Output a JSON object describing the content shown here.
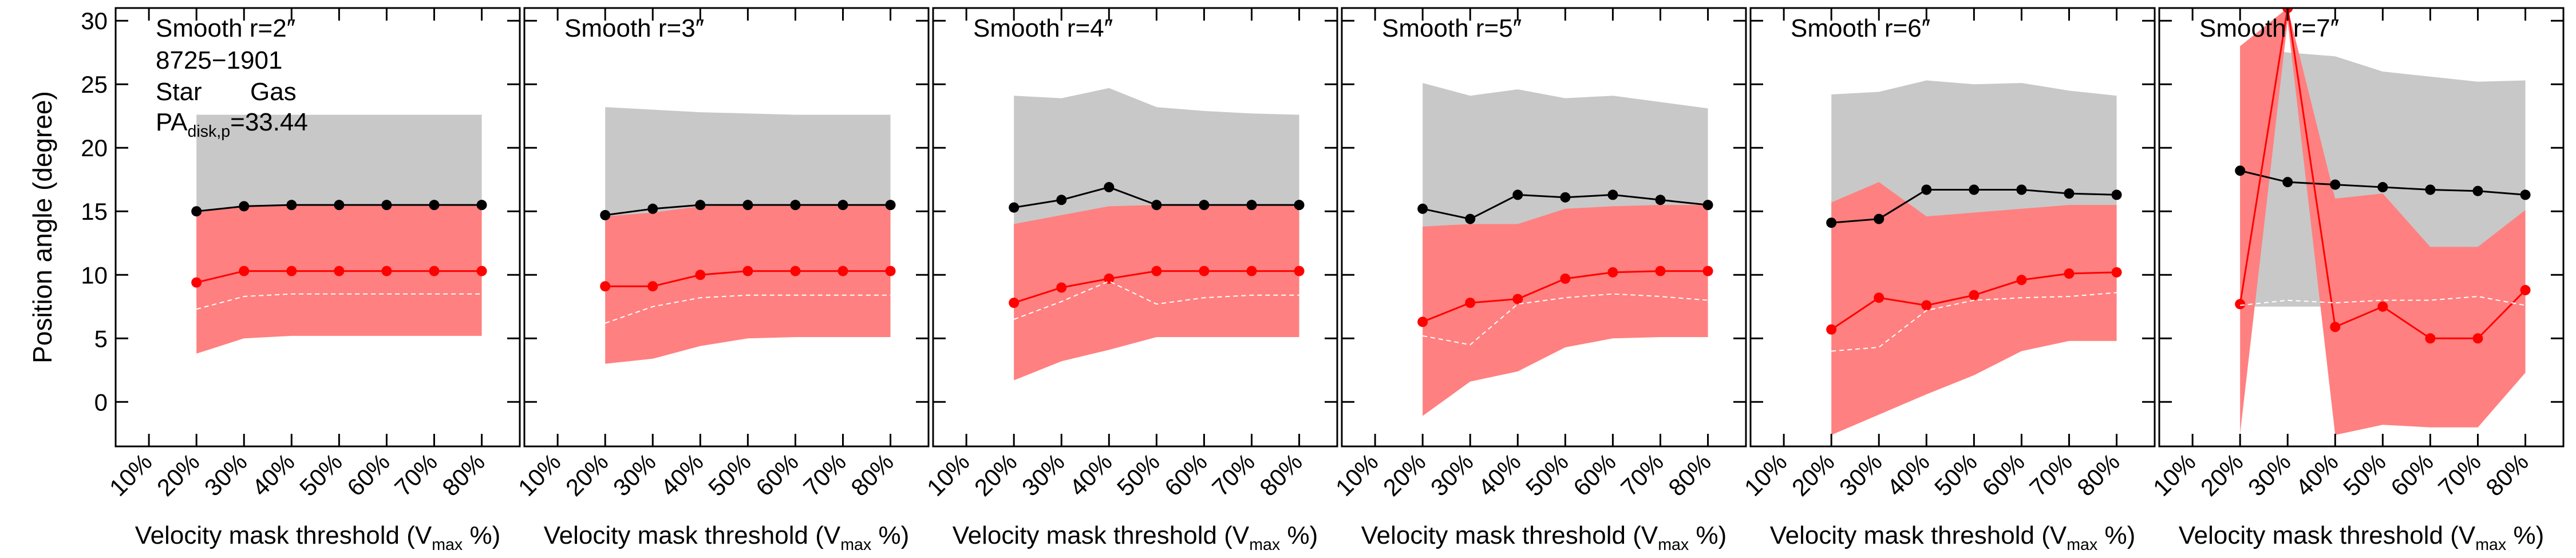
{
  "chart_data": [
    {
      "type": "line",
      "title": "Smooth r=2″",
      "annotations": [
        "8725−1901"
      ],
      "pa_label": {
        "text": "PA",
        "sub": "disk,p",
        "tail": "=33.44"
      },
      "ylabel": "Position angle (degree)",
      "xlabel": {
        "text": "Velocity mask threshold (V",
        "sub": "max",
        "tail": " %)"
      },
      "x": [
        20,
        30,
        40,
        50,
        60,
        70,
        80
      ],
      "xlim": [
        3,
        88
      ],
      "xticks": [
        {
          "value": 10,
          "label": "10%"
        },
        {
          "value": 20,
          "label": "20%"
        },
        {
          "value": 30,
          "label": "30%"
        },
        {
          "value": 40,
          "label": "40%"
        },
        {
          "value": 50,
          "label": "50%"
        },
        {
          "value": 60,
          "label": "60%"
        },
        {
          "value": 70,
          "label": "70%"
        },
        {
          "value": 80,
          "label": "80%"
        }
      ],
      "ylim": [
        -3.5,
        31
      ],
      "yticks": [
        0,
        5,
        10,
        15,
        20,
        25,
        30
      ],
      "series": [
        {
          "name": "Star",
          "color": "#000000",
          "band_color": "#c8c8c8",
          "values": [
            15.0,
            15.4,
            15.5,
            15.5,
            15.5,
            15.5,
            15.5
          ],
          "lower": [
            8,
            8,
            8,
            8,
            8,
            8,
            8
          ],
          "upper": [
            22.6,
            22.6,
            22.6,
            22.6,
            22.6,
            22.6,
            22.6
          ]
        },
        {
          "name": "Gas",
          "color": "#ff0000",
          "band_color": "#ff8080",
          "values": [
            9.4,
            10.3,
            10.3,
            10.3,
            10.3,
            10.3,
            10.3
          ],
          "lower": [
            3.8,
            5.0,
            5.2,
            5.2,
            5.2,
            5.2,
            5.2
          ],
          "upper": [
            14.9,
            15.4,
            15.5,
            15.5,
            15.5,
            15.5,
            15.5
          ]
        },
        {
          "color": "#ffffff",
          "dashed": true,
          "values": [
            7.3,
            8.3,
            8.5,
            8.5,
            8.5,
            8.5,
            8.5
          ]
        }
      ]
    },
    {
      "type": "line",
      "title": "Smooth r=3″",
      "xlabel": {
        "text": "Velocity mask threshold (V",
        "sub": "max",
        "tail": " %)"
      },
      "x": [
        20,
        30,
        40,
        50,
        60,
        70,
        80
      ],
      "xlim": [
        3,
        88
      ],
      "xticks": [
        {
          "value": 10,
          "label": "10%"
        },
        {
          "value": 20,
          "label": "20%"
        },
        {
          "value": 30,
          "label": "30%"
        },
        {
          "value": 40,
          "label": "40%"
        },
        {
          "value": 50,
          "label": "50%"
        },
        {
          "value": 60,
          "label": "60%"
        },
        {
          "value": 70,
          "label": "70%"
        },
        {
          "value": 80,
          "label": "80%"
        }
      ],
      "ylim": [
        -3.5,
        31
      ],
      "yticks": [
        0,
        5,
        10,
        15,
        20,
        25,
        30
      ],
      "series": [
        {
          "color": "#000000",
          "band_color": "#c8c8c8",
          "values": [
            14.7,
            15.2,
            15.5,
            15.5,
            15.5,
            15.5,
            15.5
          ],
          "lower": [
            8,
            8,
            8,
            8,
            8,
            8,
            8
          ],
          "upper": [
            23.2,
            23.0,
            22.8,
            22.7,
            22.6,
            22.6,
            22.6
          ]
        },
        {
          "color": "#ff0000",
          "band_color": "#ff8080",
          "values": [
            9.1,
            9.1,
            10.0,
            10.3,
            10.3,
            10.3,
            10.3
          ],
          "lower": [
            3.0,
            3.4,
            4.4,
            5.0,
            5.1,
            5.1,
            5.1
          ],
          "upper": [
            14.6,
            14.9,
            15.4,
            15.5,
            15.5,
            15.5,
            15.5
          ]
        },
        {
          "color": "#ffffff",
          "dashed": true,
          "values": [
            6.2,
            7.5,
            8.2,
            8.4,
            8.4,
            8.4,
            8.4
          ]
        }
      ]
    },
    {
      "type": "line",
      "title": "Smooth r=4″",
      "xlabel": {
        "text": "Velocity mask threshold (V",
        "sub": "max",
        "tail": " %)"
      },
      "x": [
        20,
        30,
        40,
        50,
        60,
        70,
        80
      ],
      "xlim": [
        3,
        88
      ],
      "xticks": [
        {
          "value": 10,
          "label": "10%"
        },
        {
          "value": 20,
          "label": "20%"
        },
        {
          "value": 30,
          "label": "30%"
        },
        {
          "value": 40,
          "label": "40%"
        },
        {
          "value": 50,
          "label": "50%"
        },
        {
          "value": 60,
          "label": "60%"
        },
        {
          "value": 70,
          "label": "70%"
        },
        {
          "value": 80,
          "label": "80%"
        }
      ],
      "ylim": [
        -3.5,
        31
      ],
      "yticks": [
        0,
        5,
        10,
        15,
        20,
        25,
        30
      ],
      "series": [
        {
          "color": "#000000",
          "band_color": "#c8c8c8",
          "values": [
            15.3,
            15.9,
            16.9,
            15.5,
            15.5,
            15.5,
            15.5
          ],
          "lower": [
            8,
            8,
            8,
            8,
            8,
            8,
            8
          ],
          "upper": [
            24.1,
            23.9,
            24.7,
            23.2,
            22.9,
            22.7,
            22.6
          ]
        },
        {
          "color": "#ff0000",
          "band_color": "#ff8080",
          "values": [
            7.8,
            9.0,
            9.7,
            10.3,
            10.3,
            10.3,
            10.3
          ],
          "lower": [
            1.7,
            3.2,
            4.1,
            5.1,
            5.1,
            5.1,
            5.1
          ],
          "upper": [
            14.0,
            14.7,
            15.4,
            15.5,
            15.5,
            15.5,
            15.5
          ]
        },
        {
          "color": "#ffffff",
          "dashed": true,
          "values": [
            6.5,
            7.9,
            9.5,
            7.7,
            8.2,
            8.4,
            8.4
          ]
        }
      ]
    },
    {
      "type": "line",
      "title": "Smooth r=5″",
      "xlabel": {
        "text": "Velocity mask threshold (V",
        "sub": "max",
        "tail": " %)"
      },
      "x": [
        20,
        30,
        40,
        50,
        60,
        70,
        80
      ],
      "xlim": [
        3,
        88
      ],
      "xticks": [
        {
          "value": 10,
          "label": "10%"
        },
        {
          "value": 20,
          "label": "20%"
        },
        {
          "value": 30,
          "label": "30%"
        },
        {
          "value": 40,
          "label": "40%"
        },
        {
          "value": 50,
          "label": "50%"
        },
        {
          "value": 60,
          "label": "60%"
        },
        {
          "value": 70,
          "label": "70%"
        },
        {
          "value": 80,
          "label": "80%"
        }
      ],
      "ylim": [
        -3.5,
        31
      ],
      "yticks": [
        0,
        5,
        10,
        15,
        20,
        25,
        30
      ],
      "series": [
        {
          "color": "#000000",
          "band_color": "#c8c8c8",
          "values": [
            15.2,
            14.4,
            16.3,
            16.1,
            16.3,
            15.9,
            15.5
          ],
          "lower": [
            8,
            8,
            8,
            8,
            8,
            8,
            8
          ],
          "upper": [
            25.1,
            24.1,
            24.6,
            23.9,
            24.1,
            23.6,
            23.1
          ]
        },
        {
          "color": "#ff0000",
          "band_color": "#ff8080",
          "values": [
            6.3,
            7.8,
            8.1,
            9.7,
            10.2,
            10.3,
            10.3
          ],
          "lower": [
            -1.1,
            1.6,
            2.4,
            4.3,
            5.0,
            5.1,
            5.1
          ],
          "upper": [
            13.8,
            14.0,
            14.0,
            15.2,
            15.4,
            15.5,
            15.5
          ]
        },
        {
          "color": "#ffffff",
          "dashed": true,
          "values": [
            5.2,
            4.5,
            7.7,
            8.2,
            8.5,
            8.3,
            8.0
          ]
        }
      ]
    },
    {
      "type": "line",
      "title": "Smooth r=6″",
      "xlabel": {
        "text": "Velocity mask threshold (V",
        "sub": "max",
        "tail": " %)"
      },
      "x": [
        20,
        30,
        40,
        50,
        60,
        70,
        80
      ],
      "xlim": [
        3,
        88
      ],
      "xticks": [
        {
          "value": 10,
          "label": "10%"
        },
        {
          "value": 20,
          "label": "20%"
        },
        {
          "value": 30,
          "label": "30%"
        },
        {
          "value": 40,
          "label": "40%"
        },
        {
          "value": 50,
          "label": "50%"
        },
        {
          "value": 60,
          "label": "60%"
        },
        {
          "value": 70,
          "label": "70%"
        },
        {
          "value": 80,
          "label": "80%"
        }
      ],
      "ylim": [
        -3.5,
        31
      ],
      "yticks": [
        0,
        5,
        10,
        15,
        20,
        25,
        30
      ],
      "series": [
        {
          "color": "#000000",
          "band_color": "#c8c8c8",
          "values": [
            14.1,
            14.4,
            16.7,
            16.7,
            16.7,
            16.4,
            16.3
          ],
          "lower": [
            8,
            8,
            8,
            8,
            8,
            8,
            8
          ],
          "upper": [
            24.2,
            24.4,
            25.3,
            25.0,
            25.1,
            24.5,
            24.1
          ]
        },
        {
          "color": "#ff0000",
          "band_color": "#ff8080",
          "values": [
            5.7,
            8.2,
            7.6,
            8.4,
            9.6,
            10.1,
            10.2
          ],
          "lower": [
            -2.6,
            -1.0,
            0.6,
            2.1,
            4.0,
            4.8,
            4.8
          ],
          "upper": [
            15.7,
            17.3,
            14.6,
            14.9,
            15.2,
            15.5,
            15.5
          ]
        },
        {
          "color": "#ffffff",
          "dashed": true,
          "values": [
            4.0,
            4.3,
            7.2,
            8.0,
            8.2,
            8.3,
            8.6
          ]
        }
      ]
    },
    {
      "type": "line",
      "title": "Smooth r=7″",
      "xlabel": {
        "text": "Velocity mask threshold (V",
        "sub": "max",
        "tail": " %)"
      },
      "x": [
        20,
        30,
        40,
        50,
        60,
        70,
        80
      ],
      "xlim": [
        3,
        88
      ],
      "xticks": [
        {
          "value": 10,
          "label": "10%"
        },
        {
          "value": 20,
          "label": "20%"
        },
        {
          "value": 30,
          "label": "30%"
        },
        {
          "value": 40,
          "label": "40%"
        },
        {
          "value": 50,
          "label": "50%"
        },
        {
          "value": 60,
          "label": "60%"
        },
        {
          "value": 70,
          "label": "70%"
        },
        {
          "value": 80,
          "label": "80%"
        }
      ],
      "ylim": [
        -3.5,
        31
      ],
      "yticks": [
        0,
        5,
        10,
        15,
        20,
        25,
        30
      ],
      "series": [
        {
          "color": "#000000",
          "band_color": "#c8c8c8",
          "values": [
            18.2,
            17.3,
            17.1,
            16.9,
            16.7,
            16.6,
            16.3
          ],
          "lower": [
            7.5,
            7.5,
            7.5,
            7.5,
            7.5,
            7.5,
            7.5
          ],
          "upper": [
            28.0,
            27.5,
            27.2,
            26.0,
            25.6,
            25.2,
            25.3
          ]
        },
        {
          "color": "#ff0000",
          "band_color": "#ff8080",
          "values": [
            7.7,
            31,
            5.9,
            7.5,
            5.0,
            5.0,
            8.8
          ],
          "lower": [
            -2.5,
            30,
            -2.6,
            -1.8,
            -2.0,
            -2.0,
            2.3
          ],
          "upper": [
            28.0,
            31,
            16.0,
            16.4,
            12.2,
            12.2,
            15.1
          ]
        },
        {
          "color": "#ffffff",
          "dashed": true,
          "values": [
            7.6,
            8.0,
            7.8,
            8.0,
            8.0,
            8.3,
            7.6
          ]
        }
      ]
    }
  ]
}
